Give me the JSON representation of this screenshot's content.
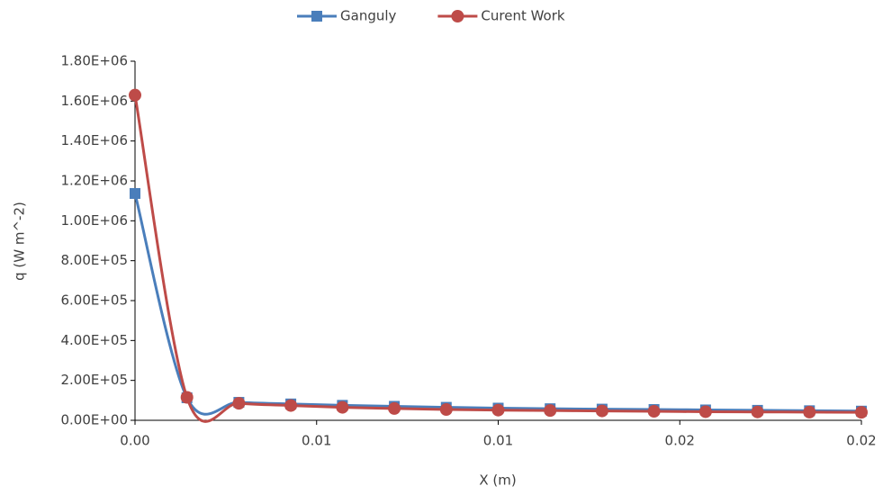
{
  "chart_data": {
    "type": "line",
    "x_label": "X (m)",
    "y_label": "q (W m^-2)",
    "x": [
      0,
      0.00143,
      0.00286,
      0.00429,
      0.00571,
      0.00714,
      0.00857,
      0.01,
      0.01143,
      0.01286,
      0.01429,
      0.01571,
      0.01714,
      0.01857,
      0.02
    ],
    "series": [
      {
        "name": "Ganguly",
        "color": "#4a7ebb",
        "marker": "square",
        "values": [
          1137000,
          113000,
          90000,
          82000,
          75000,
          70000,
          65000,
          61000,
          58000,
          56000,
          54000,
          52000,
          50000,
          48000,
          46000
        ]
      },
      {
        "name": "Curent Work",
        "color": "#be4b48",
        "marker": "circle",
        "values": [
          1630000,
          115000,
          85000,
          74000,
          65000,
          59000,
          54000,
          51000,
          49000,
          47000,
          45000,
          43000,
          42000,
          41000,
          40000
        ]
      }
    ],
    "xlim": [
      0,
      0.02
    ],
    "xticks": [
      {
        "value": 0,
        "label": "0.00"
      },
      {
        "value": 0.005,
        "label": "0.01"
      },
      {
        "value": 0.01,
        "label": "0.01"
      },
      {
        "value": 0.015,
        "label": "0.02"
      },
      {
        "value": 0.02,
        "label": "0.02"
      }
    ],
    "ylim": [
      0,
      1800000
    ],
    "yticks": [
      {
        "value": 0,
        "label": "0.00E+00"
      },
      {
        "value": 200000,
        "label": "2.00E+05"
      },
      {
        "value": 400000,
        "label": "4.00E+05"
      },
      {
        "value": 600000,
        "label": "6.00E+05"
      },
      {
        "value": 800000,
        "label": "8.00E+05"
      },
      {
        "value": 1000000,
        "label": "1.00E+06"
      },
      {
        "value": 1200000,
        "label": "1.20E+06"
      },
      {
        "value": 1400000,
        "label": "1.40E+06"
      },
      {
        "value": 1600000,
        "label": "1.60E+06"
      },
      {
        "value": 1800000,
        "label": "1.80E+06"
      }
    ],
    "legend": "top",
    "smooth": true
  }
}
